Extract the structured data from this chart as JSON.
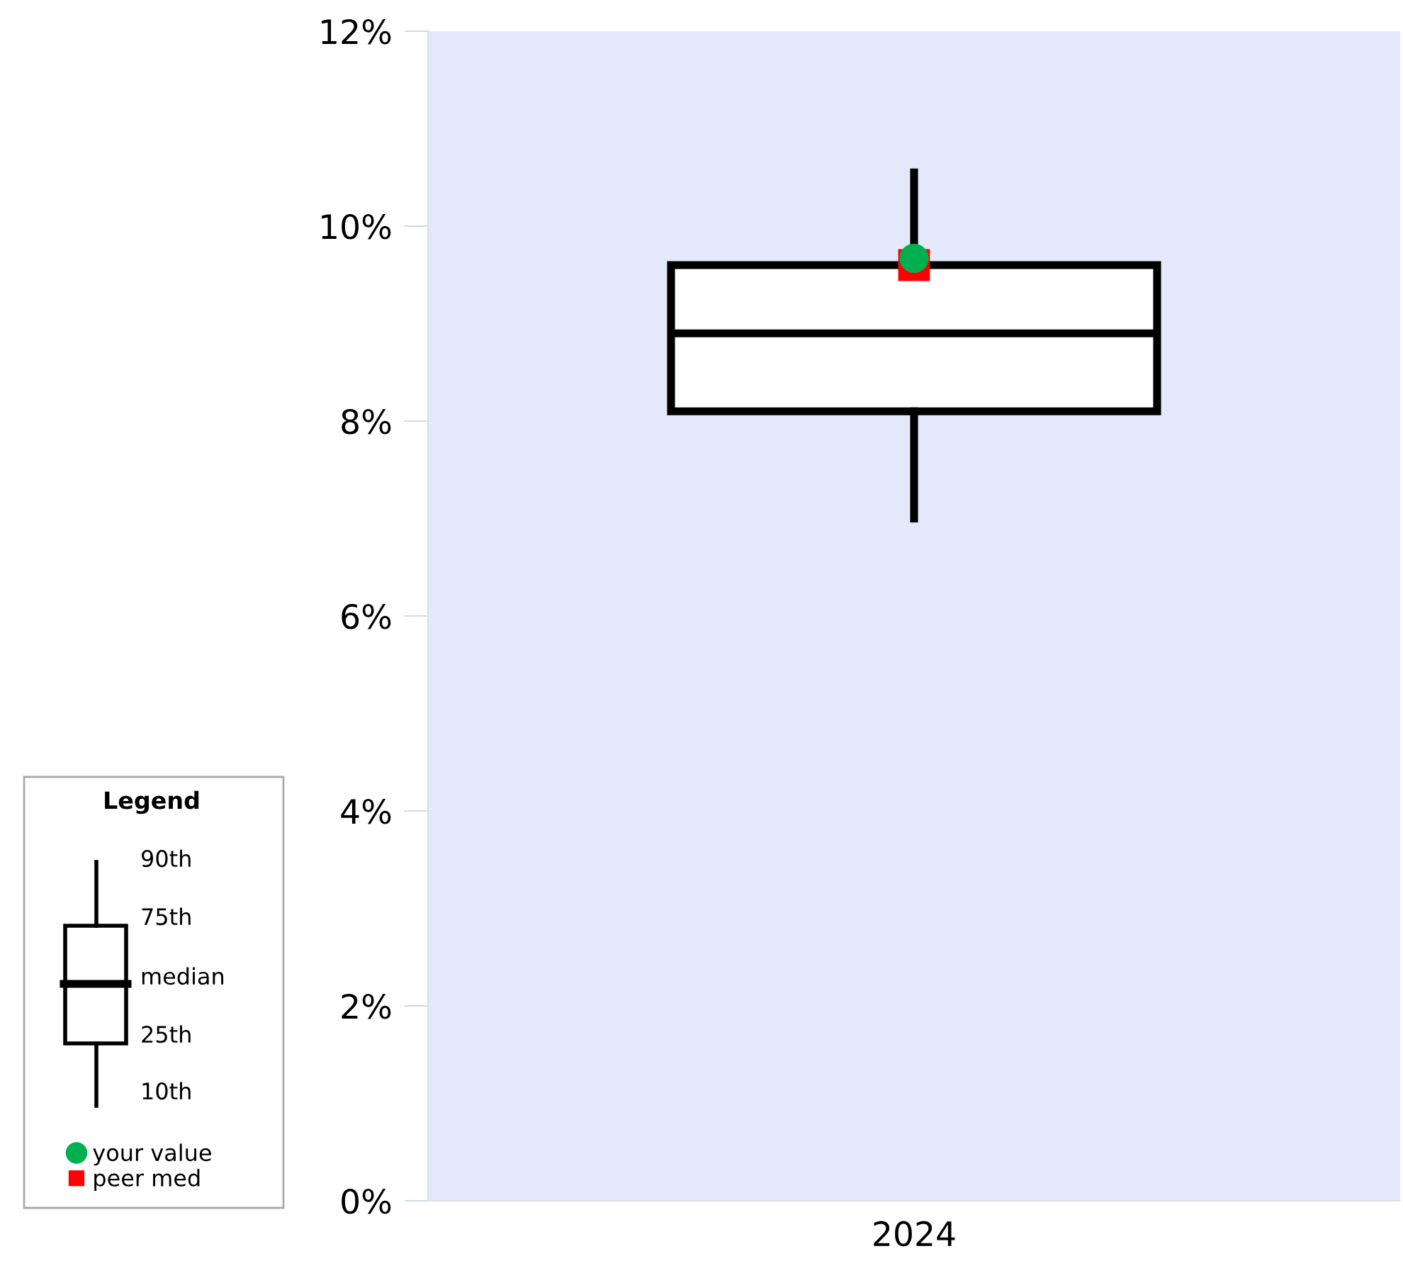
{
  "chart_data": {
    "type": "box",
    "categories": [
      "2024"
    ],
    "boxes": [
      {
        "low": 7.0,
        "q1": 8.1,
        "median": 8.9,
        "q3": 9.6,
        "high": 10.55
      }
    ],
    "series": [
      {
        "name": "your value",
        "type": "scatter",
        "marker": "circle",
        "color": "#00b050",
        "values": [
          9.67
        ]
      },
      {
        "name": "peer med",
        "type": "scatter",
        "marker": "square",
        "color": "#ff0000",
        "values": [
          9.6
        ]
      }
    ],
    "ylim": [
      0,
      12
    ],
    "yticks": [
      {
        "value": 0,
        "label": "0%"
      },
      {
        "value": 2,
        "label": "2%"
      },
      {
        "value": 4,
        "label": "4%"
      },
      {
        "value": 6,
        "label": "6%"
      },
      {
        "value": 8,
        "label": "8%"
      },
      {
        "value": 10,
        "label": "10%"
      },
      {
        "value": 12,
        "label": "12%"
      }
    ],
    "legend": "bottom left",
    "legend_title": "Legend",
    "annotations": [
      "90th",
      "75th",
      "median",
      "25th",
      "10th"
    ],
    "grid": false
  }
}
